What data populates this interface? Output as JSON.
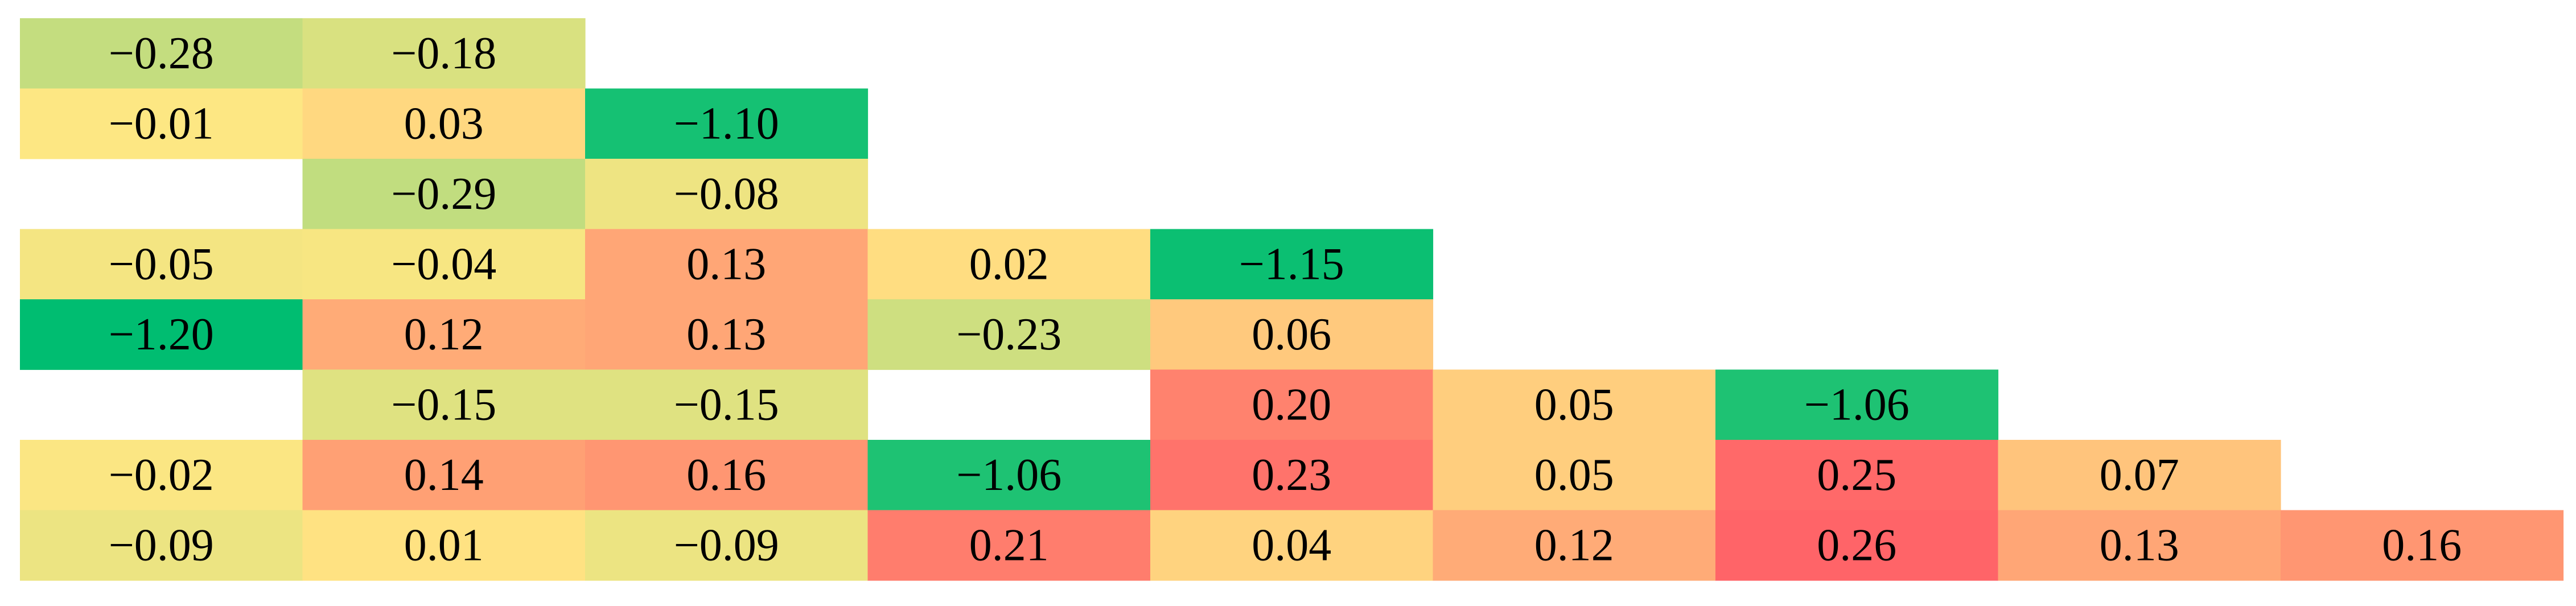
{
  "chart_data": {
    "type": "heatmap",
    "title": "",
    "xlabel": "",
    "ylabel": "",
    "color_scale": {
      "min": -1.2,
      "mid": 0.0,
      "max": 0.26,
      "min_color": "#00bd71",
      "mid_color": "#ffe783",
      "max_color": "#ff6468"
    },
    "rows": [
      [
        -0.28,
        -0.18,
        null,
        null,
        null,
        null,
        null,
        null,
        null
      ],
      [
        -0.01,
        0.03,
        -1.1,
        null,
        null,
        null,
        null,
        null,
        null
      ],
      [
        null,
        -0.29,
        -0.08,
        null,
        null,
        null,
        null,
        null,
        null
      ],
      [
        -0.05,
        -0.04,
        0.13,
        0.02,
        -1.15,
        null,
        null,
        null,
        null
      ],
      [
        -1.2,
        0.12,
        0.13,
        -0.23,
        0.06,
        null,
        null,
        null,
        null
      ],
      [
        null,
        -0.15,
        -0.15,
        null,
        0.2,
        0.05,
        -1.06,
        null,
        null
      ],
      [
        -0.02,
        0.14,
        0.16,
        -1.06,
        0.23,
        0.05,
        0.25,
        0.07,
        null
      ],
      [
        -0.09,
        0.01,
        -0.09,
        0.21,
        0.04,
        0.12,
        0.26,
        0.13,
        0.16
      ]
    ],
    "labels": [
      [
        "−0.28",
        "−0.18",
        null,
        null,
        null,
        null,
        null,
        null,
        null
      ],
      [
        "−0.01",
        "0.03",
        "−1.10",
        null,
        null,
        null,
        null,
        null,
        null
      ],
      [
        null,
        "−0.29",
        "−0.08",
        null,
        null,
        null,
        null,
        null,
        null
      ],
      [
        "−0.05",
        "−0.04",
        "0.13",
        "0.02",
        "−1.15",
        null,
        null,
        null,
        null
      ],
      [
        "−1.20",
        "0.12",
        "0.13",
        "−0.23",
        "0.06",
        null,
        null,
        null,
        null
      ],
      [
        null,
        "−0.15",
        "−0.15",
        null,
        "0.20",
        "0.05",
        "−1.06",
        null,
        null
      ],
      [
        "−0.02",
        "0.14",
        "0.16",
        "−1.06",
        "0.23",
        "0.05",
        "0.25",
        "0.07",
        null
      ],
      [
        "−0.09",
        "0.01",
        "−0.09",
        "0.21",
        "0.04",
        "0.12",
        "0.26",
        "0.13",
        "0.16"
      ]
    ]
  }
}
